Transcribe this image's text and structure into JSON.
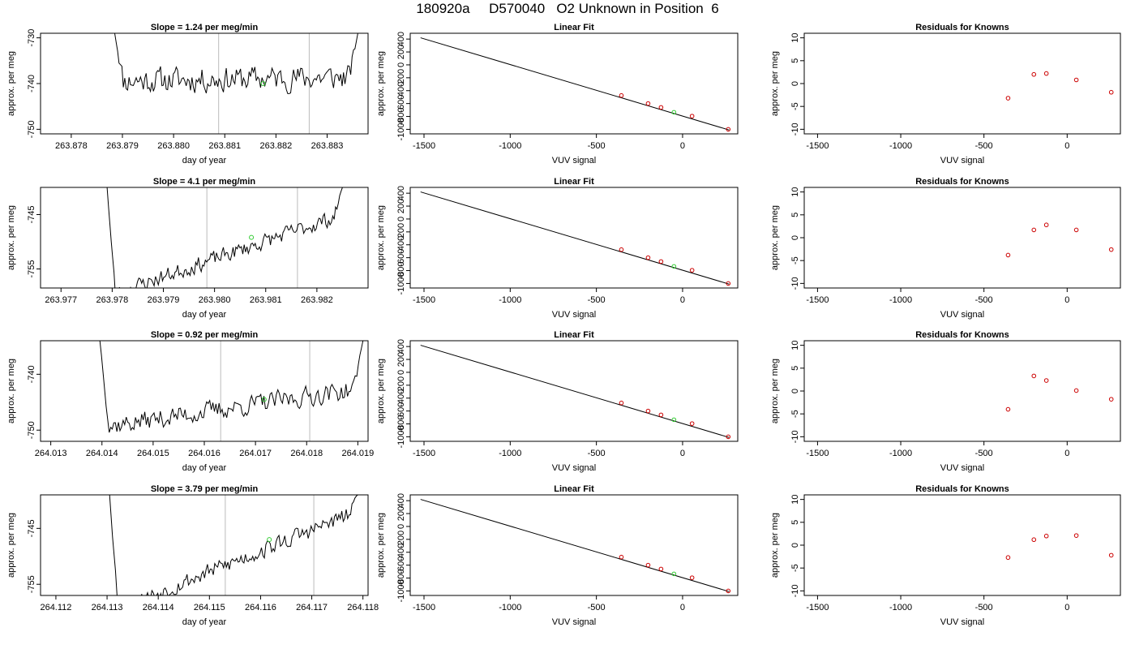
{
  "page_title": "180920a     D570040   O2 Unknown in Position  6",
  "colors": {
    "trace": "#000000",
    "known_points": "#cc0000",
    "unknown_point": "#33cc33",
    "vertical_lines": "#bbbbbb",
    "axes": "#000000"
  },
  "chart_data": [
    {
      "type": "line",
      "panel": "timeseries-1",
      "title": "Slope =  1.24  per meg/min",
      "xlabel": "day of year",
      "ylabel": "approx. per meg",
      "xlim": [
        263.8774,
        263.8838
      ],
      "ylim": [
        -751,
        -729
      ],
      "xticks": [
        "263.878",
        "263.879",
        "263.880",
        "263.881",
        "263.882",
        "263.883"
      ],
      "xtick_values": [
        263.878,
        263.879,
        263.88,
        263.881,
        263.882,
        263.883
      ],
      "yticks": [
        "-750",
        "-740",
        "-730"
      ],
      "ytick_values": [
        -750,
        -740,
        -730
      ],
      "vlines": [
        263.88088,
        263.88265
      ],
      "highlight": {
        "x": 263.88175,
        "y": -740
      },
      "series": {
        "x_start": 263.87885,
        "x_end": 263.8836,
        "base_start": -739.4,
        "base_end": -738.6,
        "noise": 2.5,
        "spike_start": -729,
        "spike_end": -729,
        "seed": 11
      }
    },
    {
      "type": "line",
      "panel": "timeseries-2",
      "title": "Slope =  4.1  per meg/min",
      "xlabel": "day of year",
      "ylabel": "approx. per meg",
      "xlim": [
        263.9766,
        263.983
      ],
      "ylim": [
        -758.5,
        -740
      ],
      "xticks": [
        "263.977",
        "263.978",
        "263.979",
        "263.980",
        "263.981",
        "263.982"
      ],
      "xtick_values": [
        263.977,
        263.978,
        263.979,
        263.98,
        263.981,
        263.982
      ],
      "yticks": [
        "-745",
        "-755"
      ],
      "ytick_values": [
        -745,
        -755
      ],
      "vlines": [
        263.97985,
        263.98162
      ],
      "highlight": {
        "x": 263.98072,
        "y": -749.2
      },
      "series": {
        "x_start": 263.9779,
        "x_end": 263.9825,
        "base_start": -760,
        "base_end": -745,
        "noise": 1.3,
        "spike_start": -740,
        "spike_end": -740,
        "seed": 23
      }
    },
    {
      "type": "line",
      "panel": "timeseries-3",
      "title": "Slope =  0.92  per meg/min",
      "xlabel": "day of year",
      "ylabel": "approx. per meg",
      "xlim": [
        264.0128,
        264.0192
      ],
      "ylim": [
        -752,
        -734
      ],
      "xticks": [
        "264.013",
        "264.014",
        "264.015",
        "264.016",
        "264.017",
        "264.018",
        "264.019"
      ],
      "xtick_values": [
        264.013,
        264.014,
        264.015,
        264.016,
        264.017,
        264.018,
        264.019
      ],
      "yticks": [
        "-750",
        "-740"
      ],
      "ytick_values": [
        -750,
        -740
      ],
      "vlines": [
        264.01632,
        264.01806
      ],
      "highlight": {
        "x": 264.01717,
        "y": -744.5
      },
      "series": {
        "x_start": 264.01396,
        "x_end": 264.0191,
        "base_start": -749.5,
        "base_end": -742.5,
        "noise": 1.6,
        "spike_start": -734,
        "spike_end": -734,
        "seed": 37
      }
    },
    {
      "type": "line",
      "panel": "timeseries-4",
      "title": "Slope =  3.79  per meg/min",
      "xlabel": "day of year",
      "ylabel": "approx. per meg",
      "xlim": [
        264.1117,
        264.1181
      ],
      "ylim": [
        -757,
        -739
      ],
      "xticks": [
        "264.112",
        "264.113",
        "264.114",
        "264.115",
        "264.116",
        "264.117",
        "264.118"
      ],
      "xtick_values": [
        264.112,
        264.113,
        264.114,
        264.115,
        264.116,
        264.117,
        264.118
      ],
      "yticks": [
        "-745",
        "-755"
      ],
      "ytick_values": [
        -745,
        -755
      ],
      "vlines": [
        264.11531,
        264.11704
      ],
      "highlight": {
        "x": 264.11617,
        "y": -747
      },
      "series": {
        "x_start": 264.11305,
        "x_end": 264.1179,
        "base_start": -760,
        "base_end": -742,
        "noise": 1.4,
        "spike_start": -739,
        "spike_end": -739,
        "seed": 53
      }
    },
    {
      "type": "scatter",
      "panel": "linear-fit-1",
      "title": "Linear Fit",
      "xlabel": "VUV signal",
      "ylabel": "approx. per meg",
      "xlim": [
        -1580,
        320
      ],
      "ylim": [
        -1070,
        490
      ],
      "xticks": [
        "-1500",
        "-1000",
        "-500",
        "0"
      ],
      "xtick_values": [
        -1500,
        -1000,
        -500,
        0
      ],
      "yticks": [
        "-1000",
        "-600",
        "-200",
        "200"
      ],
      "ytick_values": [
        -1000,
        -600,
        -200,
        200
      ],
      "yticks_rotated": [
        "-800",
        "-400",
        "0",
        "400"
      ],
      "ytick_rotated_values": [
        -800,
        -400,
        0,
        400
      ],
      "fit_line": {
        "x": [
          -1520,
          270
        ],
        "y": [
          420,
          -1010
        ]
      },
      "known_points": {
        "x": [
          -355,
          -200,
          -125,
          55,
          265
        ],
        "y": [
          -475,
          -600,
          -660,
          -795,
          -1000
        ]
      },
      "unknown_point": {
        "x": -50,
        "y": -735
      }
    },
    {
      "type": "scatter",
      "panel": "linear-fit-2",
      "title": "Linear Fit",
      "xlabel": "VUV signal",
      "ylabel": "approx. per meg",
      "xlim": [
        -1580,
        320
      ],
      "ylim": [
        -1070,
        490
      ],
      "xticks": [
        "-1500",
        "-1000",
        "-500",
        "0"
      ],
      "xtick_values": [
        -1500,
        -1000,
        -500,
        0
      ],
      "yticks": [
        "-1000",
        "-600",
        "-200",
        "200"
      ],
      "ytick_values": [
        -1000,
        -600,
        -200,
        200
      ],
      "yticks_rotated": [
        "-800",
        "-400",
        "0",
        "400"
      ],
      "ytick_rotated_values": [
        -800,
        -400,
        0,
        400
      ],
      "fit_line": {
        "x": [
          -1520,
          270
        ],
        "y": [
          420,
          -1010
        ]
      },
      "known_points": {
        "x": [
          -355,
          -200,
          -125,
          55,
          265
        ],
        "y": [
          -475,
          -600,
          -660,
          -795,
          -1000
        ]
      },
      "unknown_point": {
        "x": -50,
        "y": -735
      }
    },
    {
      "type": "scatter",
      "panel": "linear-fit-3",
      "title": "Linear Fit",
      "xlabel": "VUV signal",
      "ylabel": "approx. per meg",
      "xlim": [
        -1580,
        320
      ],
      "ylim": [
        -1070,
        490
      ],
      "xticks": [
        "-1500",
        "-1000",
        "-500",
        "0"
      ],
      "xtick_values": [
        -1500,
        -1000,
        -500,
        0
      ],
      "yticks": [
        "-1000",
        "-600",
        "-200",
        "200"
      ],
      "ytick_values": [
        -1000,
        -600,
        -200,
        200
      ],
      "yticks_rotated": [
        "-800",
        "-400",
        "0",
        "400"
      ],
      "ytick_rotated_values": [
        -800,
        -400,
        0,
        400
      ],
      "fit_line": {
        "x": [
          -1520,
          270
        ],
        "y": [
          420,
          -1010
        ]
      },
      "known_points": {
        "x": [
          -355,
          -200,
          -125,
          55,
          265
        ],
        "y": [
          -475,
          -600,
          -660,
          -795,
          -1000
        ]
      },
      "unknown_point": {
        "x": -50,
        "y": -735
      }
    },
    {
      "type": "scatter",
      "panel": "linear-fit-4",
      "title": "Linear Fit",
      "xlabel": "VUV signal",
      "ylabel": "approx. per meg",
      "xlim": [
        -1580,
        320
      ],
      "ylim": [
        -1070,
        490
      ],
      "xticks": [
        "-1500",
        "-1000",
        "-500",
        "0"
      ],
      "xtick_values": [
        -1500,
        -1000,
        -500,
        0
      ],
      "yticks": [
        "-1000",
        "-600",
        "-200",
        "200"
      ],
      "ytick_values": [
        -1000,
        -600,
        -200,
        200
      ],
      "yticks_rotated": [
        "-800",
        "-400",
        "0",
        "400"
      ],
      "ytick_rotated_values": [
        -800,
        -400,
        0,
        400
      ],
      "fit_line": {
        "x": [
          -1520,
          270
        ],
        "y": [
          420,
          -1010
        ]
      },
      "known_points": {
        "x": [
          -355,
          -200,
          -125,
          55,
          265
        ],
        "y": [
          -475,
          -600,
          -660,
          -795,
          -1000
        ]
      },
      "unknown_point": {
        "x": -50,
        "y": -735
      }
    },
    {
      "type": "scatter",
      "panel": "residuals-1",
      "title": "Residuals for Knowns",
      "xlabel": "VUV signal",
      "ylabel": "approx. per meg",
      "xlim": [
        -1580,
        320
      ],
      "ylim": [
        -11,
        11
      ],
      "xticks": [
        "-1500",
        "-1000",
        "-500",
        "0"
      ],
      "xtick_values": [
        -1500,
        -1000,
        -500,
        0
      ],
      "yticks": [
        "-10",
        "-5",
        "0",
        "5",
        "10"
      ],
      "ytick_values": [
        -10,
        -5,
        0,
        5,
        10
      ],
      "known_points": {
        "x": [
          -355,
          -200,
          -125,
          55,
          265
        ],
        "y": [
          -3.2,
          2.0,
          2.2,
          0.8,
          -1.9
        ]
      }
    },
    {
      "type": "scatter",
      "panel": "residuals-2",
      "title": "Residuals for Knowns",
      "xlabel": "VUV signal",
      "ylabel": "approx. per meg",
      "xlim": [
        -1580,
        320
      ],
      "ylim": [
        -11,
        11
      ],
      "xticks": [
        "-1500",
        "-1000",
        "-500",
        "0"
      ],
      "xtick_values": [
        -1500,
        -1000,
        -500,
        0
      ],
      "yticks": [
        "-10",
        "-5",
        "0",
        "5",
        "10"
      ],
      "ytick_values": [
        -10,
        -5,
        0,
        5,
        10
      ],
      "known_points": {
        "x": [
          -355,
          -200,
          -125,
          55,
          265
        ],
        "y": [
          -3.8,
          1.7,
          2.8,
          1.7,
          -2.6
        ]
      }
    },
    {
      "type": "scatter",
      "panel": "residuals-3",
      "title": "Residuals for Knowns",
      "xlabel": "VUV signal",
      "ylabel": "approx. per meg",
      "xlim": [
        -1580,
        320
      ],
      "ylim": [
        -11,
        11
      ],
      "xticks": [
        "-1500",
        "-1000",
        "-500",
        "0"
      ],
      "xtick_values": [
        -1500,
        -1000,
        -500,
        0
      ],
      "yticks": [
        "-10",
        "-5",
        "0",
        "5",
        "10"
      ],
      "ytick_values": [
        -10,
        -5,
        0,
        5,
        10
      ],
      "known_points": {
        "x": [
          -355,
          -200,
          -125,
          55,
          265
        ],
        "y": [
          -4.0,
          3.3,
          2.3,
          0.1,
          -1.8
        ]
      }
    },
    {
      "type": "scatter",
      "panel": "residuals-4",
      "title": "Residuals for Knowns",
      "xlabel": "VUV signal",
      "ylabel": "approx. per meg",
      "xlim": [
        -1580,
        320
      ],
      "ylim": [
        -11,
        11
      ],
      "xticks": [
        "-1500",
        "-1000",
        "-500",
        "0"
      ],
      "xtick_values": [
        -1500,
        -1000,
        -500,
        0
      ],
      "yticks": [
        "-10",
        "-5",
        "0",
        "5",
        "10"
      ],
      "ytick_values": [
        -10,
        -5,
        0,
        5,
        10
      ],
      "known_points": {
        "x": [
          -355,
          -200,
          -125,
          55,
          265
        ],
        "y": [
          -2.7,
          1.2,
          2.0,
          2.1,
          -2.2
        ]
      }
    }
  ]
}
